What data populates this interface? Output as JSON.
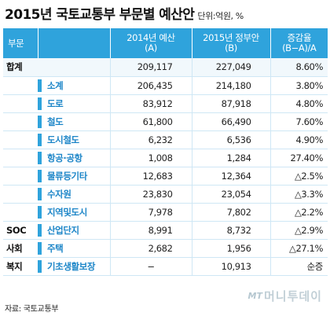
{
  "header": {
    "title": "2015년 국토교통부 부문별 예산안",
    "unit": "단위:억원, %"
  },
  "columns": {
    "sector": "부문",
    "label": "",
    "y2014": [
      "2014년 예산",
      "(A)"
    ],
    "y2015": [
      "2015년 정부안",
      "(B)"
    ],
    "rate": [
      "증감율",
      "(B−A)/A"
    ]
  },
  "rows": [
    {
      "sector": "합계",
      "label": "",
      "y2014": "209,117",
      "y2015": "227,049",
      "rate": "8.60%",
      "kind": "total"
    },
    {
      "sector": "",
      "label": "소계",
      "y2014": "206,435",
      "y2015": "214,180",
      "rate": "3.80%",
      "kind": "sub"
    },
    {
      "sector": "",
      "label": "도로",
      "y2014": "83,912",
      "y2015": "87,918",
      "rate": "4.80%",
      "kind": "sub"
    },
    {
      "sector": "",
      "label": "철도",
      "y2014": "61,800",
      "y2015": "66,490",
      "rate": "7.60%",
      "kind": "sub"
    },
    {
      "sector": "",
      "label": "도시철도",
      "y2014": "6,232",
      "y2015": "6,536",
      "rate": "4.90%",
      "kind": "sub"
    },
    {
      "sector": "",
      "label": "항공·공항",
      "y2014": "1,008",
      "y2015": "1,284",
      "rate": "27.40%",
      "kind": "sub"
    },
    {
      "sector": "",
      "label": "물류등기타",
      "y2014": "12,683",
      "y2015": "12,364",
      "rate": "△2.5%",
      "kind": "sub"
    },
    {
      "sector": "",
      "label": "수자원",
      "y2014": "23,830",
      "y2015": "23,054",
      "rate": "△3.3%",
      "kind": "sub"
    },
    {
      "sector": "",
      "label": "지역및도시",
      "y2014": "7,978",
      "y2015": "7,802",
      "rate": "△2.2%",
      "kind": "sub"
    },
    {
      "sector": "SOC",
      "label": "산업단지",
      "y2014": "8,991",
      "y2015": "8,732",
      "rate": "△2.9%",
      "kind": "sub"
    },
    {
      "sector": "사회",
      "label": "주택",
      "y2014": "2,682",
      "y2015": "1,956",
      "rate": "△27.1%",
      "kind": "group"
    },
    {
      "sector": "복지",
      "label": "기초생활보장",
      "y2014": "−",
      "y2015": "10,913",
      "rate": "순증",
      "kind": "group"
    }
  ],
  "source": "자료: 국토교통부",
  "watermark": {
    "mark": "MT",
    "text": "머니투데이"
  },
  "colors": {
    "header_bg": "#2fa3dc",
    "label_text": "#1d86c8",
    "row_border": "#cfe7f5"
  }
}
